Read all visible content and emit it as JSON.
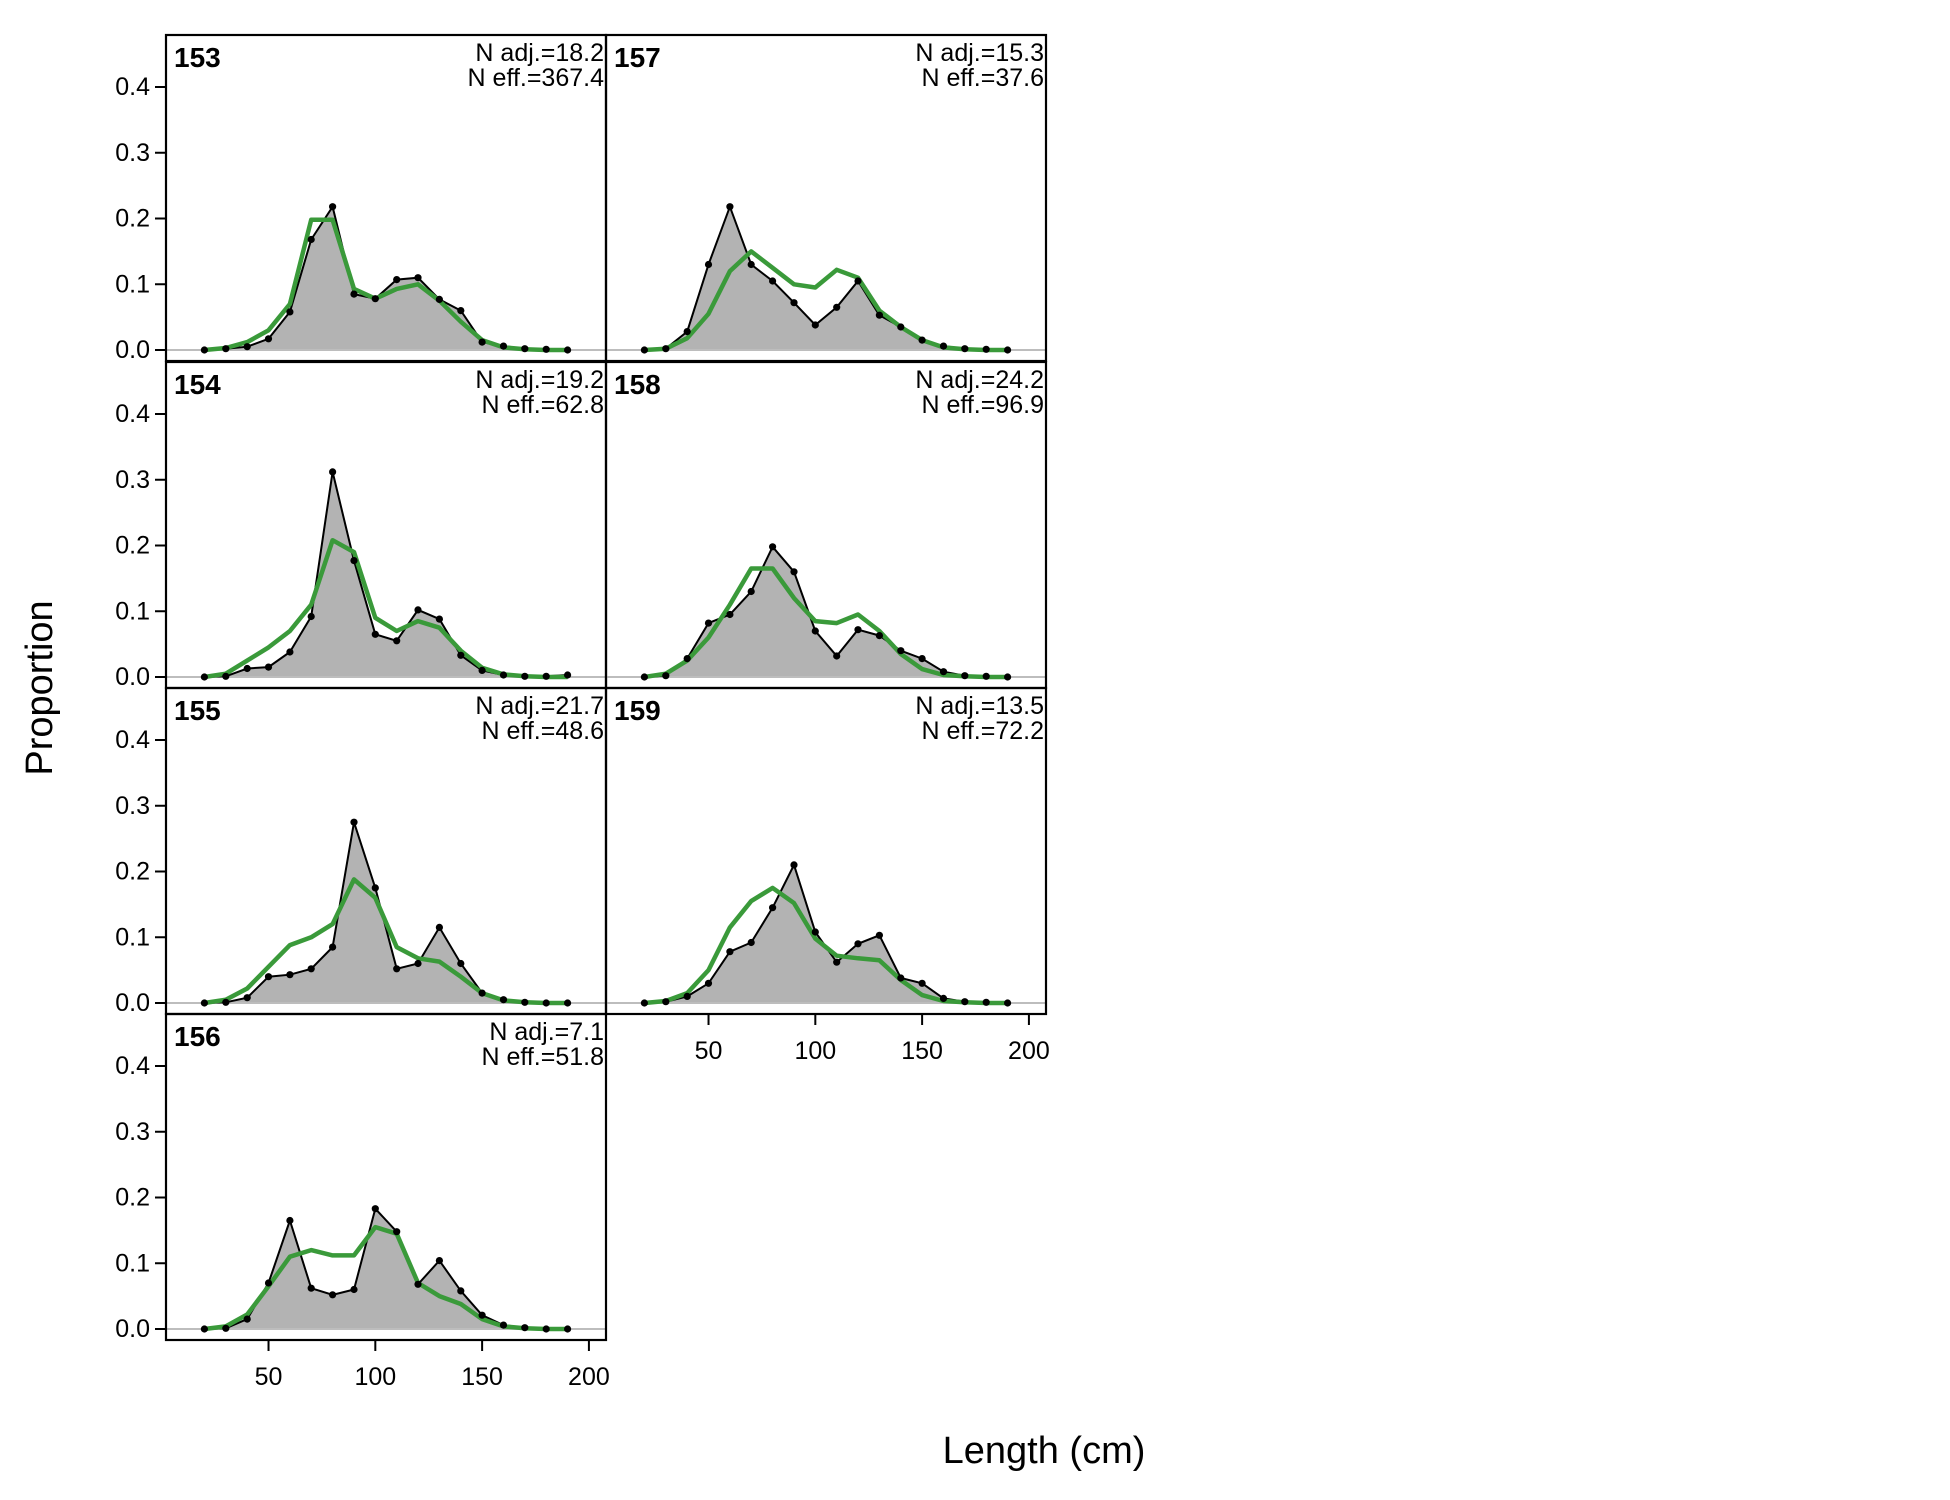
{
  "figure": {
    "ylabel": "Proportion",
    "xlabel": "Length (cm)"
  },
  "colors": {
    "observed_fill": "#b3b3b3",
    "observed_line": "#000000",
    "expected_line": "#3a9a3a",
    "zero_line": "#bdbdbd"
  },
  "chart_data": {
    "type": "area",
    "xlabel": "Length (cm)",
    "ylabel": "Proportion",
    "ylim": [
      0,
      0.48
    ],
    "xlim": [
      2,
      208
    ],
    "x_ticks": [
      50,
      100,
      150,
      200
    ],
    "y_ticks": [
      0.0,
      0.1,
      0.2,
      0.3,
      0.4
    ],
    "y_tick_labels": [
      "0.0",
      "0.1",
      "0.2",
      "0.3",
      "0.4"
    ],
    "x": [
      20,
      30,
      40,
      50,
      60,
      70,
      80,
      90,
      100,
      110,
      120,
      130,
      140,
      150,
      160,
      170,
      180,
      190
    ],
    "panels": [
      {
        "id": "153",
        "n_adj": "N adj.=18.2",
        "n_eff": "N eff.=367.4",
        "observed": [
          0,
          0.002,
          0.005,
          0.017,
          0.058,
          0.168,
          0.218,
          0.085,
          0.078,
          0.107,
          0.11,
          0.077,
          0.06,
          0.012,
          0.006,
          0.002,
          0.001,
          0
        ],
        "expected": [
          0,
          0.003,
          0.012,
          0.03,
          0.07,
          0.198,
          0.198,
          0.093,
          0.078,
          0.093,
          0.1,
          0.075,
          0.043,
          0.015,
          0.004,
          0.001,
          0,
          0
        ]
      },
      {
        "id": "154",
        "n_adj": "N adj.=19.2",
        "n_eff": "N eff.=62.8",
        "observed": [
          0,
          0.001,
          0.013,
          0.015,
          0.038,
          0.092,
          0.312,
          0.177,
          0.065,
          0.055,
          0.102,
          0.088,
          0.033,
          0.01,
          0.003,
          0.001,
          0.001,
          0.003
        ],
        "expected": [
          0,
          0.005,
          0.025,
          0.045,
          0.07,
          0.11,
          0.208,
          0.19,
          0.09,
          0.07,
          0.085,
          0.075,
          0.04,
          0.014,
          0.004,
          0.001,
          0,
          0
        ]
      },
      {
        "id": "155",
        "n_adj": "N adj.=21.7",
        "n_eff": "N eff.=48.6",
        "observed": [
          0,
          0.001,
          0.008,
          0.04,
          0.043,
          0.052,
          0.085,
          0.275,
          0.175,
          0.052,
          0.06,
          0.115,
          0.06,
          0.015,
          0.005,
          0.001,
          0,
          0
        ],
        "expected": [
          0,
          0.005,
          0.022,
          0.055,
          0.088,
          0.1,
          0.12,
          0.188,
          0.16,
          0.085,
          0.068,
          0.063,
          0.04,
          0.015,
          0.004,
          0.001,
          0,
          0
        ]
      },
      {
        "id": "156",
        "n_adj": "N adj.=7.1",
        "n_eff": "N eff.=51.8",
        "observed": [
          0,
          0.001,
          0.015,
          0.07,
          0.165,
          0.062,
          0.052,
          0.06,
          0.183,
          0.148,
          0.068,
          0.104,
          0.058,
          0.021,
          0.006,
          0.002,
          0,
          0
        ],
        "expected": [
          0,
          0.004,
          0.022,
          0.065,
          0.11,
          0.12,
          0.112,
          0.112,
          0.155,
          0.145,
          0.07,
          0.05,
          0.038,
          0.015,
          0.004,
          0.001,
          0,
          0
        ]
      },
      {
        "id": "157",
        "n_adj": "N adj.=15.3",
        "n_eff": "N eff.=37.6",
        "observed": [
          0,
          0.002,
          0.028,
          0.13,
          0.218,
          0.13,
          0.105,
          0.072,
          0.038,
          0.065,
          0.105,
          0.053,
          0.035,
          0.015,
          0.006,
          0.002,
          0.001,
          0
        ],
        "expected": [
          0,
          0.002,
          0.018,
          0.055,
          0.12,
          0.15,
          0.125,
          0.1,
          0.095,
          0.122,
          0.11,
          0.06,
          0.035,
          0.015,
          0.004,
          0.001,
          0,
          0
        ]
      },
      {
        "id": "158",
        "n_adj": "N adj.=24.2",
        "n_eff": "N eff.=96.9",
        "observed": [
          0,
          0.002,
          0.028,
          0.082,
          0.095,
          0.13,
          0.198,
          0.16,
          0.07,
          0.032,
          0.072,
          0.063,
          0.04,
          0.028,
          0.008,
          0.002,
          0.001,
          0
        ],
        "expected": [
          0,
          0.005,
          0.025,
          0.06,
          0.11,
          0.165,
          0.165,
          0.12,
          0.085,
          0.082,
          0.095,
          0.07,
          0.035,
          0.012,
          0.003,
          0.001,
          0,
          0
        ]
      },
      {
        "id": "159",
        "n_adj": "N adj.=13.5",
        "n_eff": "N eff.=72.2",
        "observed": [
          0,
          0.002,
          0.01,
          0.03,
          0.078,
          0.092,
          0.145,
          0.21,
          0.108,
          0.062,
          0.09,
          0.103,
          0.038,
          0.03,
          0.007,
          0.002,
          0.001,
          0
        ],
        "expected": [
          0,
          0.003,
          0.015,
          0.05,
          0.115,
          0.155,
          0.175,
          0.152,
          0.098,
          0.072,
          0.068,
          0.065,
          0.035,
          0.012,
          0.003,
          0.001,
          0,
          0
        ]
      }
    ]
  }
}
